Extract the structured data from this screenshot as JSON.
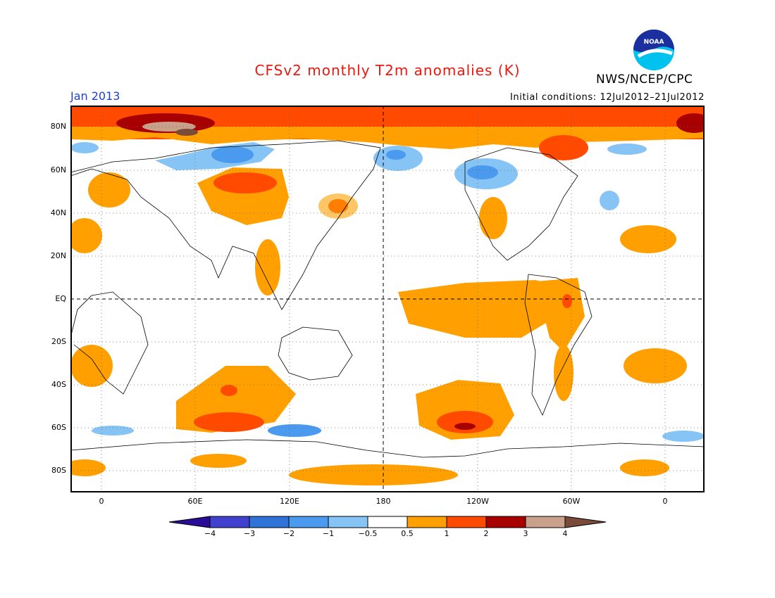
{
  "title": "CFSv2 monthly T2m anomalies (K)",
  "agency": "NWS/NCEP/CPC",
  "logo_text": "NOAA",
  "month_label": "Jan 2013",
  "initial_conditions": "Initial conditions: 12Jul2012–21Jul2012",
  "latitude_labels": [
    "80N",
    "60N",
    "40N",
    "20N",
    "EQ",
    "20S",
    "40S",
    "60S",
    "80S"
  ],
  "longitude_labels": [
    "0",
    "60E",
    "120E",
    "180",
    "120W",
    "60W",
    "0"
  ],
  "colorbar": {
    "labels": [
      "−4",
      "−3",
      "−2",
      "−1",
      "−0.5",
      "0.5",
      "1",
      "2",
      "3",
      "4"
    ],
    "colors": [
      "#2a0d96",
      "#4141d0",
      "#2f72d8",
      "#4a9bf0",
      "#86c4f5",
      "#ffffff",
      "#ffa000",
      "#ff4a00",
      "#a80000",
      "#c9a08a",
      "#7b4b3a"
    ]
  },
  "colors": {
    "title": "#e8190f",
    "month_label": "#1f3fd6",
    "weak_warm": "#ffa000",
    "moderate_warm": "#ff4a00",
    "strong_warm": "#a80000",
    "weak_cool": "#86c4f5",
    "moderate_cool": "#4a9bf0"
  }
}
